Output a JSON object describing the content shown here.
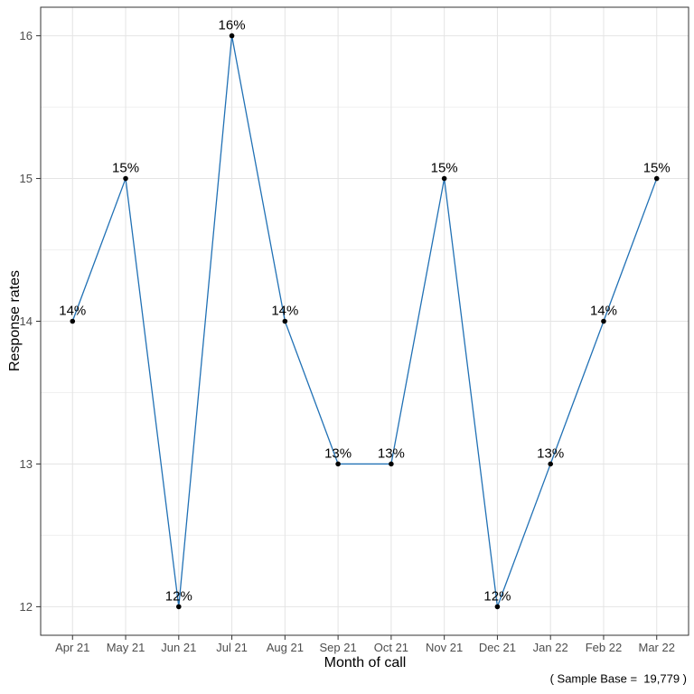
{
  "chart_data": {
    "type": "line",
    "categories": [
      "Apr 21",
      "May 21",
      "Jun 21",
      "Jul 21",
      "Aug 21",
      "Sep 21",
      "Oct 21",
      "Nov 21",
      "Dec 21",
      "Jan 22",
      "Feb 22",
      "Mar 22"
    ],
    "series": [
      {
        "name": "Response rates",
        "values": [
          14,
          15,
          12,
          16,
          14,
          13,
          13,
          15,
          12,
          13,
          14,
          15
        ]
      }
    ],
    "point_labels": [
      "14%",
      "15%",
      "12%",
      "16%",
      "14%",
      "13%",
      "13%",
      "15%",
      "12%",
      "13%",
      "14%",
      "15%"
    ],
    "title": "",
    "xlabel": "Month of call",
    "ylabel": "Response rates",
    "ylim": [
      12,
      16
    ],
    "yticks": [
      12,
      13,
      14,
      15,
      16
    ],
    "y_minor_ticks": [
      12.5,
      13.5,
      14.5,
      15.5
    ],
    "grid": "major-xy + minor-y",
    "legend": "none",
    "colors": {
      "line": "#2171b5",
      "point": "#000000",
      "grid_major": "#e4e4e4",
      "grid_minor": "#f0f0f0",
      "panel_border": "#333333",
      "tick_mark": "#333333",
      "tick_text": "#4d4d4d",
      "label_text": "#000000"
    }
  },
  "caption": "( Sample Base =  19,779 )"
}
